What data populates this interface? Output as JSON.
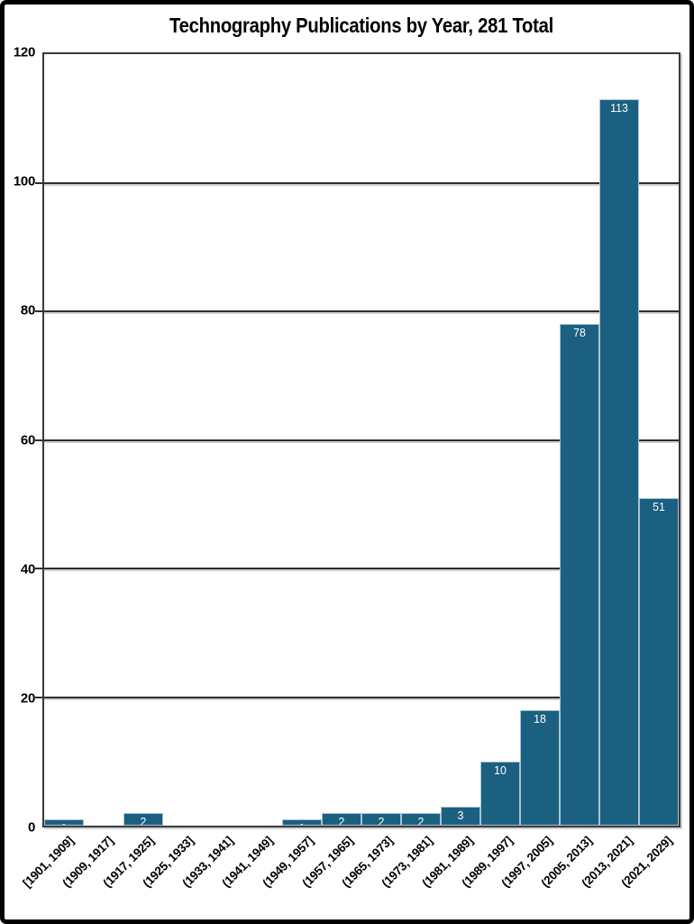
{
  "title": "Technography Publications by Year, 281 Total",
  "chart_data": {
    "type": "bar",
    "subtype": "histogram",
    "title": "Technography Publications by Year, 281 Total",
    "categories": [
      "[1901, 1909]",
      "(1909, 1917]",
      "(1917, 1925]",
      "(1925, 1933]",
      "(1933, 1941]",
      "(1941, 1949]",
      "(1949, 1957]",
      "(1957, 1965]",
      "(1965, 1973]",
      "(1973, 1981]",
      "(1981, 1989]",
      "(1989, 1997]",
      "(1997, 2005]",
      "(2005, 2013]",
      "(2013, 2021]",
      "(2021, 2029]"
    ],
    "values": [
      1,
      0,
      2,
      0,
      0,
      0,
      1,
      2,
      2,
      2,
      3,
      10,
      18,
      78,
      113,
      51
    ],
    "data_labels": [
      "1",
      "",
      "2",
      "",
      "",
      "",
      "1",
      "2",
      "2",
      "2",
      "3",
      "10",
      "18",
      "78",
      "113",
      "51"
    ],
    "xlabel": "",
    "ylabel": "",
    "ylim": [
      0,
      120
    ],
    "yticks": [
      0,
      20,
      40,
      60,
      80,
      100,
      120
    ],
    "grid": "horizontal",
    "legend": "none",
    "bar_gap": 0
  },
  "colors": {
    "bar_fill": "#1C6081",
    "bar_border": "#A6C4D2",
    "bar_label": "#FFFFFF",
    "grid_line": "#2E2E2E",
    "grid_shadow": "#D0D0D0",
    "axis_border": "#3A3A3A",
    "frame_border": "#000000",
    "background": "#FFFFFF",
    "text": "#000000"
  }
}
